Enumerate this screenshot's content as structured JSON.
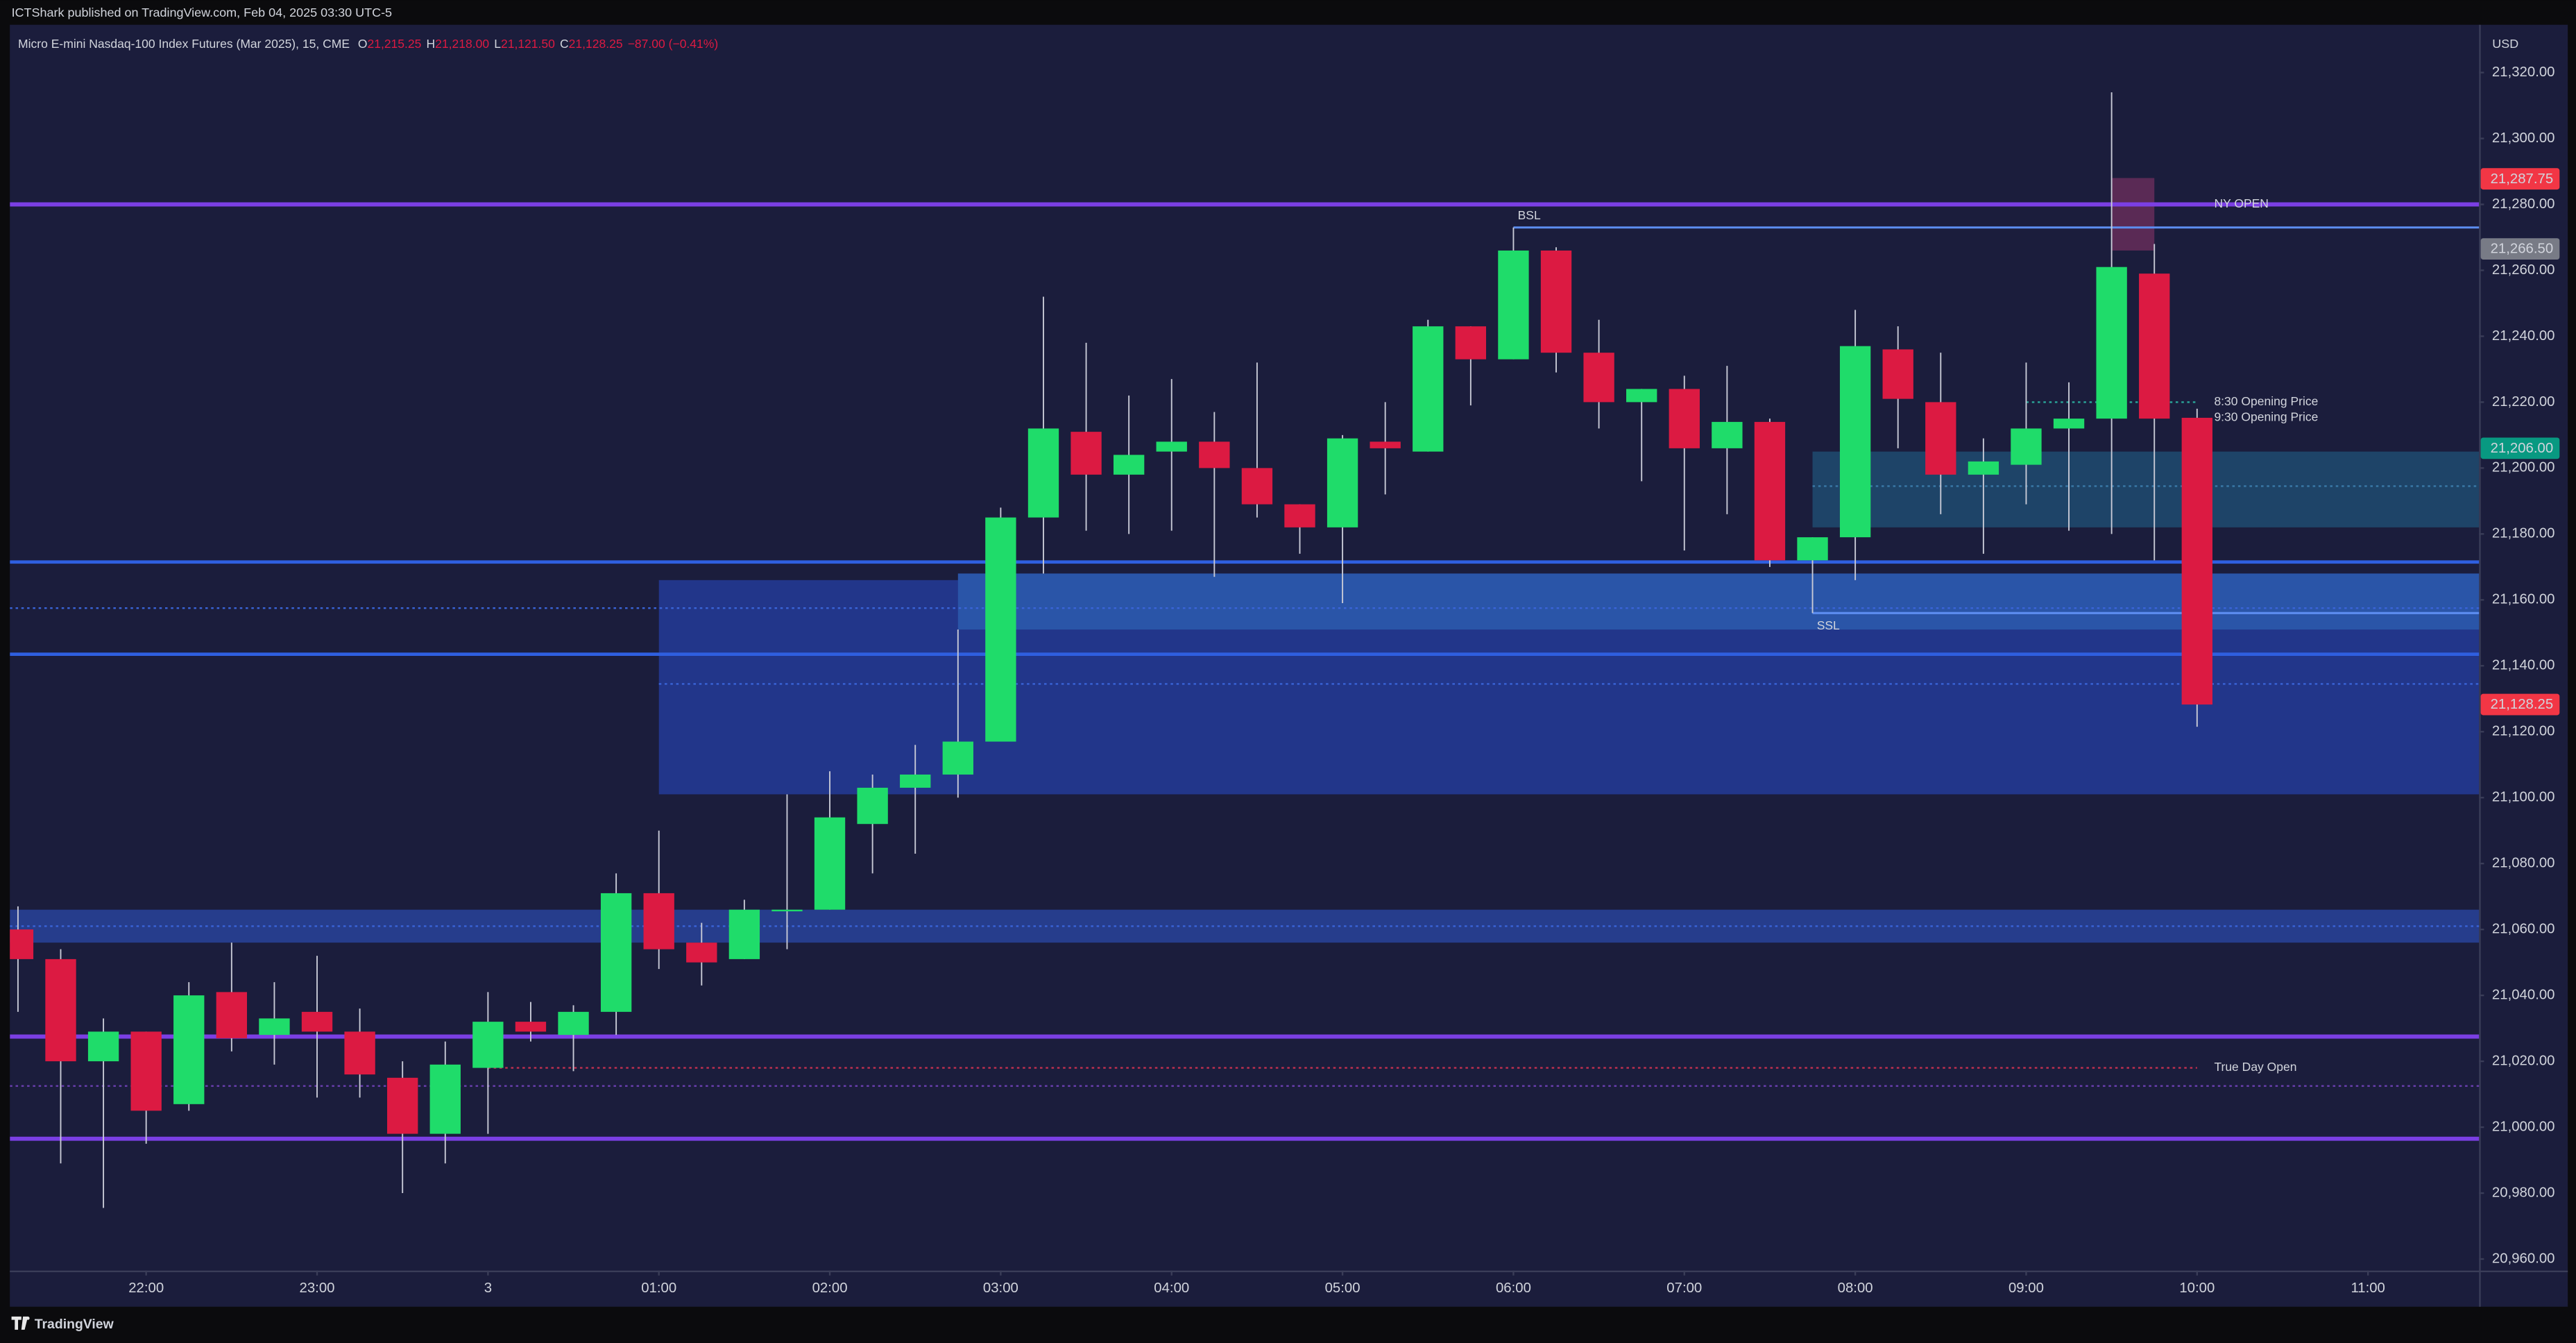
{
  "header": {
    "publisher": "ICTShark published on TradingView.com, Feb 04, 2025 03:30 UTC-5",
    "currency": "USD",
    "brand": "TradingView"
  },
  "legend": {
    "symbol": "Micro E-mini Nasdaq-100 Index Futures (Mar 2025), 15, CME",
    "items": [
      {
        "key": "O",
        "value": "21,215.25"
      },
      {
        "key": "H",
        "value": "21,218.00"
      },
      {
        "key": "L",
        "value": "21,121.50"
      },
      {
        "key": "C",
        "value": "21,128.25"
      }
    ],
    "change": "−87.00 (−0.41%)"
  },
  "chart_data": {
    "type": "candlestick",
    "up_color": "#1fdc6a",
    "down_color": "#dc1a42",
    "wick_color": "#c8cad6",
    "open": [
      21060,
      21051,
      21020,
      21029,
      21007,
      21041,
      21028,
      21035,
      21029,
      21015,
      20998,
      21018,
      21032,
      21028,
      21035,
      21071,
      21056,
      21051,
      21066,
      21066,
      21092,
      21103,
      21107,
      21117,
      21185,
      21211,
      21198,
      21205,
      21208,
      21200,
      21189,
      21182,
      21208,
      21205,
      21243,
      21233,
      21266,
      21235,
      21220,
      21224,
      21206,
      21214,
      21172,
      21179,
      21236,
      21220,
      21198,
      21201,
      21212,
      21215,
      21259,
      21215.25
    ],
    "high": [
      21067,
      21054,
      21033,
      21029,
      21044,
      21056,
      21044,
      21052,
      21036,
      21020,
      21026,
      21041,
      21038,
      21037,
      21077,
      21090,
      21062,
      21069,
      21101,
      21108,
      21107,
      21116,
      21151,
      21188,
      21252,
      21238,
      21222,
      21227,
      21217,
      21232,
      21189,
      21210,
      21220,
      21245,
      21243,
      21273,
      21267,
      21245,
      21224,
      21228,
      21231,
      21215,
      21179,
      21248,
      21243,
      21235,
      21209,
      21232,
      21226,
      21314,
      21268,
      21218
    ],
    "low": [
      21035,
      20989,
      20975.5,
      20995,
      21005,
      21023,
      21019,
      21009,
      21009,
      20980,
      20989,
      20998,
      21026,
      21017,
      21028,
      21048,
      21043,
      21051,
      21054,
      21066,
      21077,
      21083,
      21100,
      21117,
      21168,
      21181,
      21180,
      21181,
      21167,
      21185,
      21174,
      21159,
      21192,
      21205,
      21219,
      21233,
      21229,
      21212,
      21196,
      21175,
      21186,
      21170,
      21156,
      21166,
      21206,
      21186,
      21174,
      21189,
      21181,
      21180,
      21172,
      21121.5
    ],
    "close": [
      21051,
      21020,
      21029,
      21005,
      21040,
      21027,
      21033,
      21029,
      21016,
      20998,
      21019,
      21032,
      21029,
      21035,
      21071,
      21054,
      21050,
      21066,
      21066,
      21094,
      21103,
      21107,
      21117,
      21185,
      21212,
      21198,
      21204,
      21208,
      21200,
      21189,
      21182,
      21209,
      21206,
      21243,
      21233,
      21266,
      21235,
      21220,
      21224,
      21206,
      21214,
      21172,
      21179,
      21237,
      21221,
      21198,
      21202,
      21212,
      21215,
      21261,
      21215,
      21128.25
    ],
    "xlim": [
      -0.19,
      57.6
    ],
    "xticks": [
      {
        "value": 3,
        "label": "22:00"
      },
      {
        "value": 7,
        "label": "23:00"
      },
      {
        "value": 11,
        "label": "3"
      },
      {
        "value": 15,
        "label": "01:00"
      },
      {
        "value": 19,
        "label": "02:00"
      },
      {
        "value": 23,
        "label": "03:00"
      },
      {
        "value": 27,
        "label": "04:00"
      },
      {
        "value": 31,
        "label": "05:00"
      },
      {
        "value": 35,
        "label": "06:00"
      },
      {
        "value": 39,
        "label": "07:00"
      },
      {
        "value": 43,
        "label": "08:00"
      },
      {
        "value": 47,
        "label": "09:00"
      },
      {
        "value": 51,
        "label": "10:00"
      },
      {
        "value": 55,
        "label": "11:00"
      }
    ],
    "ylim": [
      20956.5,
      21334.5
    ],
    "yticks": [
      {
        "value": 20960,
        "label": "20,960.00"
      },
      {
        "value": 20980,
        "label": "20,980.00"
      },
      {
        "value": 21000,
        "label": "21,000.00"
      },
      {
        "value": 21020,
        "label": "21,020.00"
      },
      {
        "value": 21040,
        "label": "21,040.00"
      },
      {
        "value": 21060,
        "label": "21,060.00"
      },
      {
        "value": 21080,
        "label": "21,080.00"
      },
      {
        "value": 21100,
        "label": "21,100.00"
      },
      {
        "value": 21120,
        "label": "21,120.00"
      },
      {
        "value": 21140,
        "label": "21,140.00"
      },
      {
        "value": 21160,
        "label": "21,160.00"
      },
      {
        "value": 21180,
        "label": "21,180.00"
      },
      {
        "value": 21200,
        "label": "21,200.00"
      },
      {
        "value": 21220,
        "label": "21,220.00"
      },
      {
        "value": 21240,
        "label": "21,240.00"
      },
      {
        "value": 21260,
        "label": "21,260.00"
      },
      {
        "value": 21280,
        "label": "21,280.00"
      },
      {
        "value": 21300,
        "label": "21,300.00"
      },
      {
        "value": 21320,
        "label": "21,320.00"
      }
    ],
    "grid": false,
    "price_labels": [
      {
        "value": 21287.75,
        "label": "21,287.75",
        "color": "#f23645"
      },
      {
        "value": 21266.5,
        "label": "21,266.50",
        "color": "#787b86"
      },
      {
        "value": 21206,
        "label": "21,206.00",
        "color": "#089981"
      },
      {
        "value": 21128.25,
        "label": "21,128.25",
        "color": "#f23645"
      }
    ],
    "zones": [
      {
        "top": 21066,
        "bottom": 21056,
        "from": null,
        "to": null,
        "color": "#263d8c"
      },
      {
        "top": 21166,
        "bottom": 21101,
        "from": 15,
        "to": null,
        "color": "#22368a"
      },
      {
        "top": 21168,
        "bottom": 21151,
        "from": 22,
        "to": null,
        "color": "#2a55a8"
      },
      {
        "top": 21205,
        "bottom": 21182,
        "from": 42,
        "to": null,
        "color": "#1e4468"
      },
      {
        "top": 21288,
        "bottom": 21266,
        "from": 49,
        "to": 50,
        "color": "#5a2a55"
      }
    ],
    "levels": [
      {
        "price": 21280,
        "from": null,
        "to": null,
        "color": "#7b3fe4",
        "width": 2.5,
        "style": "solid",
        "label": "NY OPEN",
        "label_side": "center"
      },
      {
        "price": 21171.5,
        "from": null,
        "to": null,
        "color": "#2f5fe0",
        "width": 2,
        "style": "solid"
      },
      {
        "price": 21143.5,
        "from": null,
        "to": null,
        "color": "#2f5fe0",
        "width": 2,
        "style": "solid"
      },
      {
        "price": 21027.5,
        "from": null,
        "to": null,
        "color": "#7b3fe4",
        "width": 2.5,
        "style": "solid"
      },
      {
        "price": 20996.5,
        "from": null,
        "to": null,
        "color": "#7b3fe4",
        "width": 2.5,
        "style": "solid"
      },
      {
        "price": 21273,
        "from": 35,
        "to": null,
        "color": "#5c8df0",
        "width": 1.3,
        "style": "solid",
        "label": "BSL",
        "label_side": "above"
      },
      {
        "price": 21156,
        "from": 42,
        "to": null,
        "color": "#5c8df0",
        "width": 1.3,
        "style": "solid",
        "label": "SSL",
        "label_side": "below"
      },
      {
        "price": 21157.5,
        "from": null,
        "to": null,
        "color": "#3a64d8",
        "width": 1,
        "style": "dotted"
      },
      {
        "price": 21134.5,
        "from": 15,
        "to": null,
        "color": "#3a64d8",
        "width": 1,
        "style": "dotted"
      },
      {
        "price": 21061,
        "from": null,
        "to": null,
        "color": "#3a64d8",
        "width": 1,
        "style": "dotted"
      },
      {
        "price": 21012.5,
        "from": null,
        "to": null,
        "color": "#6b3fb0",
        "width": 1,
        "style": "dotted"
      },
      {
        "price": 21194.5,
        "from": 42,
        "to": null,
        "color": "#3a7aa8",
        "width": 1,
        "style": "dotted"
      },
      {
        "price": 21018,
        "from": 11,
        "to": 51,
        "color": "#c2304f",
        "width": 1,
        "style": "dotted",
        "label": "True Day Open",
        "label_side": "center"
      },
      {
        "price": 21220,
        "from": 47,
        "to": 51,
        "color": "#2aa89a",
        "width": 1,
        "style": "dotted",
        "label": "8:30 Opening Price",
        "label_side": "center"
      },
      {
        "price": 21215.25,
        "from": 51,
        "to": 51,
        "color": "#2aa89a",
        "width": 1,
        "style": "dotted",
        "label": "9:30 Opening Price",
        "label_side": "center"
      }
    ]
  }
}
